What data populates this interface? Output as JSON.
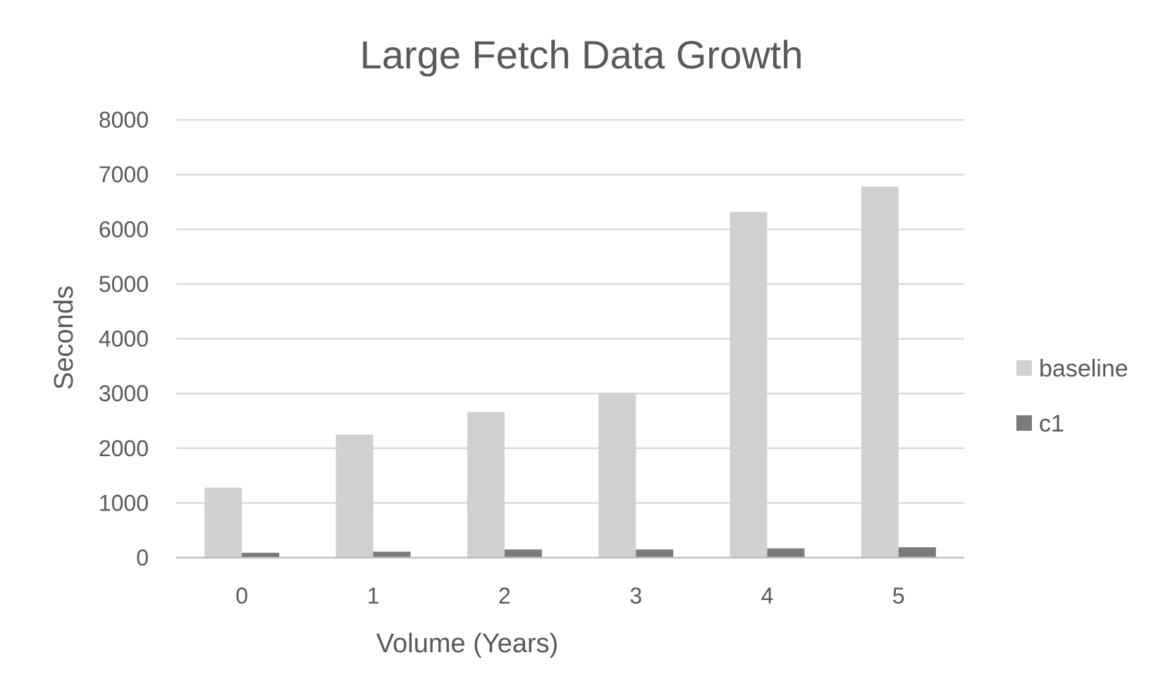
{
  "chart_data": {
    "type": "bar",
    "title": "Large Fetch Data Growth",
    "xlabel": "Volume (Years)",
    "ylabel": "Seconds",
    "categories": [
      "0",
      "1",
      "2",
      "3",
      "4",
      "5"
    ],
    "series": [
      {
        "name": "baseline",
        "color": "#d0d0d0",
        "values": [
          1280,
          2250,
          2660,
          3000,
          6320,
          6780
        ]
      },
      {
        "name": "c1",
        "color": "#7a7a7a",
        "values": [
          90,
          110,
          150,
          150,
          170,
          190
        ]
      }
    ],
    "ylim": [
      0,
      8000
    ],
    "yticks": [
      0,
      1000,
      2000,
      3000,
      4000,
      5000,
      6000,
      7000,
      8000
    ],
    "ytick_labels": [
      "0",
      "1000",
      "2000",
      "3000",
      "4000",
      "5000",
      "6000",
      "7000",
      "8000"
    ],
    "grid": true,
    "legend_position": "right"
  }
}
